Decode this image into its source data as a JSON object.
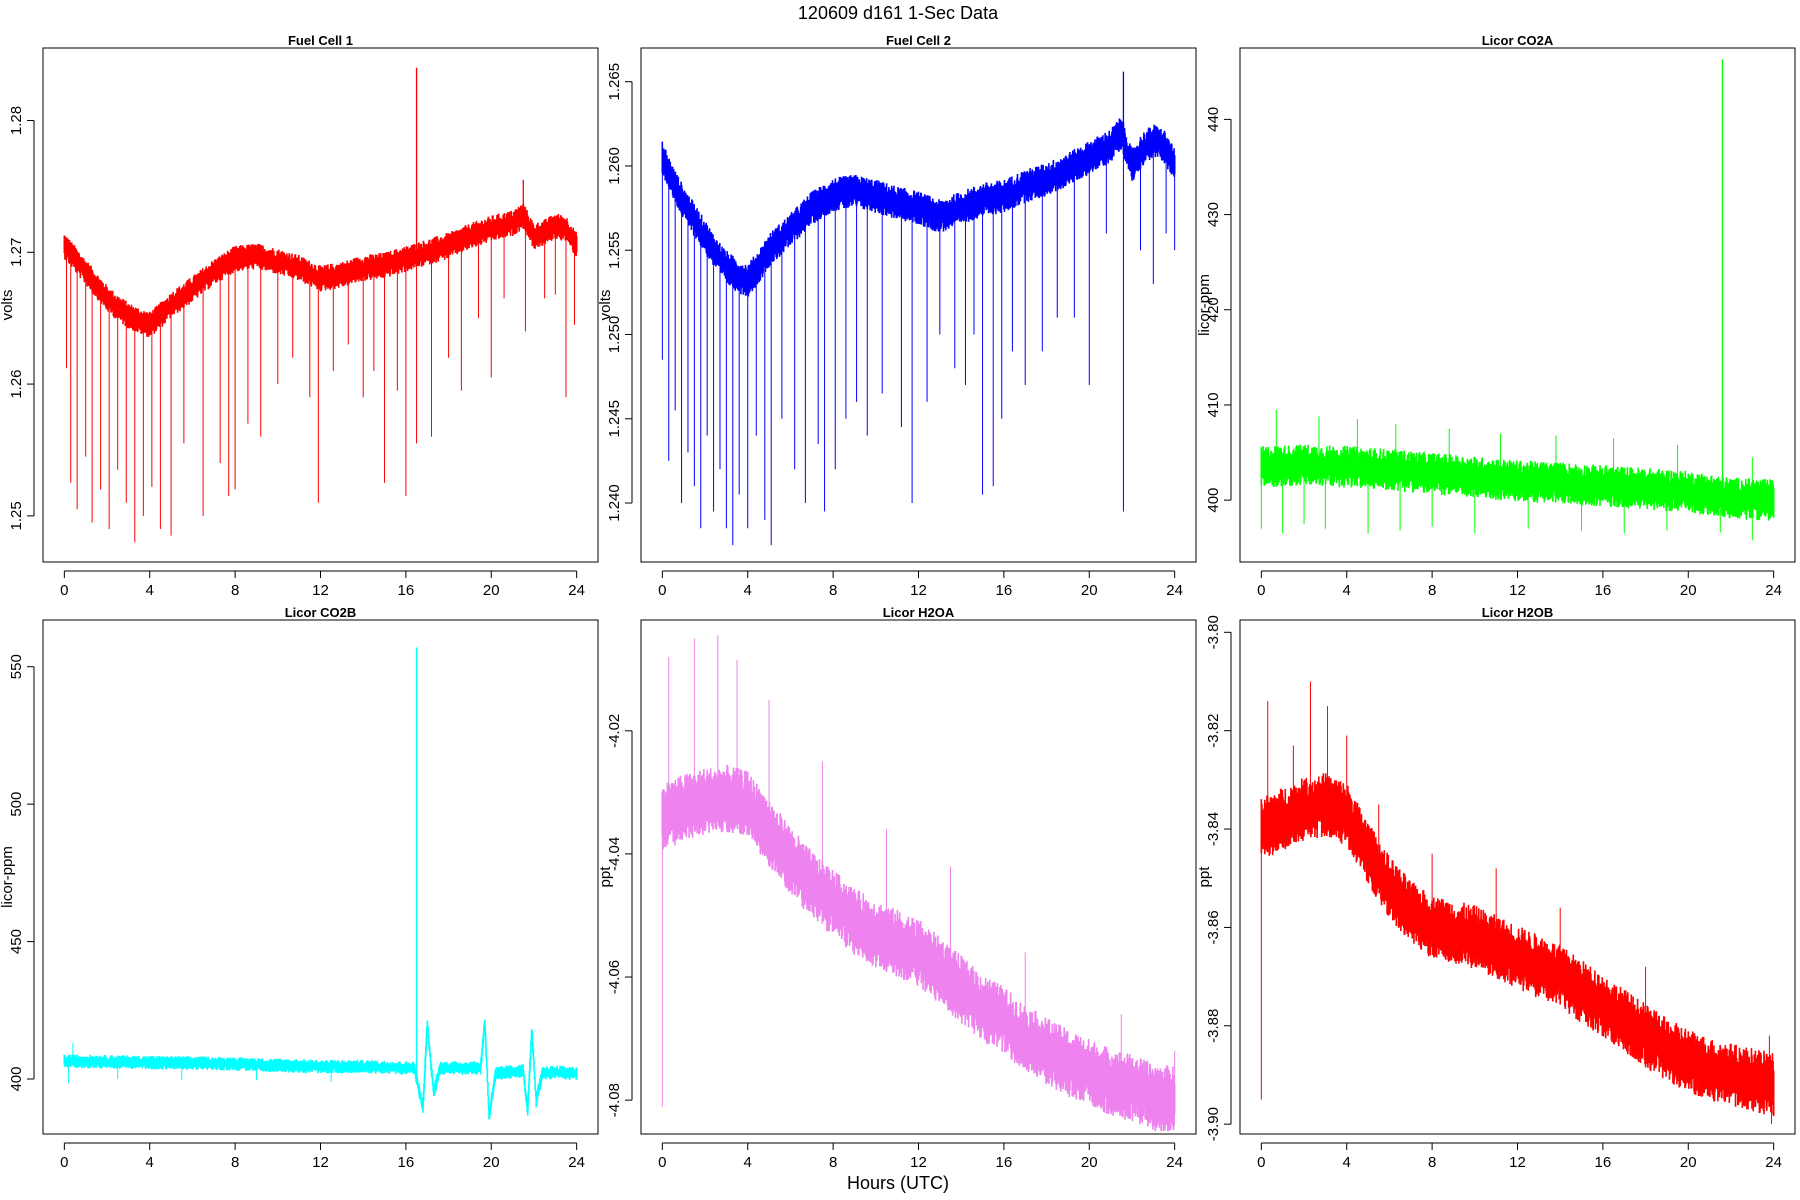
{
  "figure": {
    "title": "120609   d161   1-Sec Data",
    "xlabel": "Hours (UTC)"
  },
  "chart_data": [
    {
      "type": "line",
      "title": "Fuel Cell 1",
      "ylabel": "volts",
      "color": "#ff0000",
      "xlim": [
        -1,
        25
      ],
      "ylim": [
        1.2465,
        1.2855
      ],
      "xticks": [
        0,
        4,
        8,
        12,
        16,
        20,
        24
      ],
      "yticks": [
        1.25,
        1.26,
        1.27,
        1.28
      ],
      "ytick_labels": [
        "1.25",
        "1.26",
        "1.27",
        "1.28"
      ],
      "x": [
        0,
        0.5,
        1,
        1.5,
        2,
        2.5,
        3,
        3.5,
        4,
        4.5,
        5,
        6,
        7,
        8,
        9,
        10,
        11,
        12,
        13,
        14,
        15,
        16,
        17,
        18,
        19,
        20,
        21,
        21.5,
        22,
        22.5,
        23,
        23.5,
        24
      ],
      "y": [
        1.2705,
        1.2695,
        1.2685,
        1.2675,
        1.2665,
        1.2658,
        1.2652,
        1.2648,
        1.2645,
        1.2652,
        1.266,
        1.2672,
        1.2685,
        1.2695,
        1.2697,
        1.2693,
        1.2688,
        1.268,
        1.2683,
        1.2688,
        1.269,
        1.2695,
        1.27,
        1.2705,
        1.2712,
        1.2718,
        1.2722,
        1.2728,
        1.2712,
        1.2715,
        1.272,
        1.2718,
        1.2705
      ],
      "band": 0.001,
      "spikes": [
        [
          0.1,
          1.2612
        ],
        [
          0.3,
          1.2525
        ],
        [
          0.6,
          1.2505
        ],
        [
          1.0,
          1.2545
        ],
        [
          1.3,
          1.2495
        ],
        [
          1.7,
          1.252
        ],
        [
          2.1,
          1.249
        ],
        [
          2.5,
          1.2535
        ],
        [
          2.9,
          1.251
        ],
        [
          3.3,
          1.248
        ],
        [
          3.7,
          1.25
        ],
        [
          4.1,
          1.2522
        ],
        [
          4.5,
          1.249
        ],
        [
          5.0,
          1.2485
        ],
        [
          5.6,
          1.2555
        ],
        [
          6.5,
          1.25
        ],
        [
          7.3,
          1.254
        ],
        [
          7.7,
          1.2515
        ],
        [
          8.0,
          1.252
        ],
        [
          8.6,
          1.257
        ],
        [
          9.2,
          1.256
        ],
        [
          10.0,
          1.26
        ],
        [
          10.7,
          1.262
        ],
        [
          11.5,
          1.259
        ],
        [
          11.9,
          1.251
        ],
        [
          12.6,
          1.261
        ],
        [
          13.3,
          1.263
        ],
        [
          14.0,
          1.259
        ],
        [
          14.5,
          1.261
        ],
        [
          15.0,
          1.2525
        ],
        [
          15.6,
          1.2595
        ],
        [
          16.0,
          1.2515
        ],
        [
          16.5,
          1.2555
        ],
        [
          17.2,
          1.256
        ],
        [
          18.0,
          1.262
        ],
        [
          18.6,
          1.2595
        ],
        [
          19.4,
          1.265
        ],
        [
          20.0,
          1.2605
        ],
        [
          20.6,
          1.2665
        ],
        [
          21.6,
          1.264
        ],
        [
          22.5,
          1.2665
        ],
        [
          23.0,
          1.2668
        ],
        [
          23.5,
          1.259
        ],
        [
          23.9,
          1.2645
        ]
      ],
      "peaks": [
        [
          16.5,
          1.284
        ],
        [
          21.5,
          1.2755
        ]
      ]
    },
    {
      "type": "line",
      "title": "Fuel Cell 2",
      "ylabel": "volts",
      "color": "#0000ff",
      "xlim": [
        -1,
        25
      ],
      "ylim": [
        1.2365,
        1.267
      ],
      "xticks": [
        0,
        4,
        8,
        12,
        16,
        20,
        24
      ],
      "yticks": [
        1.24,
        1.245,
        1.25,
        1.255,
        1.26,
        1.265
      ],
      "ytick_labels": [
        "1.240",
        "1.245",
        "1.250",
        "1.255",
        "1.260",
        "1.265"
      ],
      "x": [
        0,
        0.5,
        1,
        1.5,
        2,
        2.5,
        3,
        3.5,
        4,
        4.5,
        5,
        6,
        7,
        8,
        9,
        10,
        11,
        12,
        13,
        14,
        15,
        16,
        17,
        18,
        19,
        20,
        21,
        21.5,
        22,
        22.5,
        23,
        23.5,
        24
      ],
      "y": [
        1.2605,
        1.259,
        1.2578,
        1.2568,
        1.2558,
        1.2548,
        1.254,
        1.2535,
        1.2532,
        1.254,
        1.255,
        1.2562,
        1.2575,
        1.2583,
        1.2585,
        1.2582,
        1.2578,
        1.2575,
        1.257,
        1.2575,
        1.258,
        1.2582,
        1.2588,
        1.2592,
        1.2598,
        1.2605,
        1.2612,
        1.262,
        1.26,
        1.261,
        1.2615,
        1.2612,
        1.26
      ],
      "band": 0.001,
      "spikes": [
        [
          0.0,
          1.2485
        ],
        [
          0.3,
          1.2425
        ],
        [
          0.6,
          1.2455
        ],
        [
          0.9,
          1.24
        ],
        [
          1.2,
          1.243
        ],
        [
          1.5,
          1.241
        ],
        [
          1.8,
          1.2385
        ],
        [
          2.1,
          1.244
        ],
        [
          2.4,
          1.2395
        ],
        [
          2.7,
          1.242
        ],
        [
          3.0,
          1.2385
        ],
        [
          3.3,
          1.2375
        ],
        [
          3.6,
          1.2405
        ],
        [
          4.0,
          1.2385
        ],
        [
          4.4,
          1.244
        ],
        [
          4.8,
          1.239
        ],
        [
          5.1,
          1.2375
        ],
        [
          5.6,
          1.245
        ],
        [
          6.2,
          1.242
        ],
        [
          6.7,
          1.24
        ],
        [
          7.3,
          1.2435
        ],
        [
          7.6,
          1.2395
        ],
        [
          8.1,
          1.242
        ],
        [
          8.6,
          1.245
        ],
        [
          9.1,
          1.246
        ],
        [
          9.6,
          1.244
        ],
        [
          10.3,
          1.2465
        ],
        [
          11.2,
          1.2445
        ],
        [
          11.7,
          1.24
        ],
        [
          12.4,
          1.246
        ],
        [
          13.0,
          1.25
        ],
        [
          13.7,
          1.248
        ],
        [
          14.2,
          1.247
        ],
        [
          14.6,
          1.25
        ],
        [
          15.0,
          1.2405
        ],
        [
          15.5,
          1.241
        ],
        [
          15.9,
          1.245
        ],
        [
          16.4,
          1.249
        ],
        [
          17.0,
          1.247
        ],
        [
          17.8,
          1.249
        ],
        [
          18.5,
          1.251
        ],
        [
          19.3,
          1.251
        ],
        [
          20.0,
          1.247
        ],
        [
          20.8,
          1.256
        ],
        [
          21.6,
          1.2395
        ],
        [
          22.4,
          1.255
        ],
        [
          23.0,
          1.253
        ],
        [
          23.6,
          1.256
        ],
        [
          24.0,
          1.255
        ]
      ],
      "peaks": [
        [
          21.6,
          1.2656
        ]
      ]
    },
    {
      "type": "line",
      "title": "Licor CO2A",
      "ylabel": "licor-ppm",
      "color": "#00ff00",
      "xlim": [
        -1,
        25
      ],
      "ylim": [
        393.5,
        447.5
      ],
      "xticks": [
        0,
        4,
        8,
        12,
        16,
        20,
        24
      ],
      "yticks": [
        400,
        410,
        420,
        430,
        440
      ],
      "ytick_labels": [
        "400",
        "410",
        "420",
        "430",
        "440"
      ],
      "x": [
        0,
        2,
        4,
        6,
        8,
        10,
        12,
        14,
        16,
        18,
        20,
        22,
        24
      ],
      "y": [
        403.5,
        403.7,
        403.5,
        403.2,
        402.8,
        402.4,
        402.0,
        401.8,
        401.5,
        401.2,
        400.9,
        400.2,
        400.0
      ],
      "band": 2.2,
      "spikes": [
        [
          0.0,
          397.0
        ],
        [
          1.0,
          396.5
        ],
        [
          2.0,
          397.5
        ],
        [
          3.0,
          397.0
        ],
        [
          5.0,
          396.5
        ],
        [
          6.5,
          396.8
        ],
        [
          8.0,
          397.2
        ],
        [
          10.0,
          396.5
        ],
        [
          12.5,
          397.0
        ],
        [
          15.0,
          396.8
        ],
        [
          17.0,
          396.5
        ],
        [
          19.0,
          396.8
        ],
        [
          21.5,
          396.6
        ],
        [
          23.0,
          395.8
        ],
        [
          0.7,
          409.5
        ],
        [
          2.7,
          408.8
        ],
        [
          4.5,
          408.5
        ],
        [
          6.3,
          408.0
        ],
        [
          8.8,
          407.5
        ],
        [
          11.2,
          407.0
        ],
        [
          13.8,
          406.8
        ],
        [
          16.5,
          406.5
        ],
        [
          19.5,
          405.8
        ],
        [
          23.0,
          404.5
        ]
      ],
      "peaks": [
        [
          21.6,
          446.3
        ]
      ]
    },
    {
      "type": "line",
      "title": "Licor CO2B",
      "ylabel": "licor-ppm",
      "color": "#00ffff",
      "xlim": [
        -1,
        25
      ],
      "ylim": [
        380.0,
        567.0
      ],
      "xticks": [
        0,
        4,
        8,
        12,
        16,
        20,
        24
      ],
      "yticks": [
        400,
        450,
        500,
        550
      ],
      "ytick_labels": [
        "400",
        "450",
        "500",
        "550"
      ],
      "x": [
        0,
        2,
        4,
        6,
        8,
        10,
        12,
        14,
        16,
        16.4,
        16.8,
        17.0,
        17.3,
        17.6,
        18,
        19.5,
        19.7,
        19.9,
        20.2,
        21.5,
        21.7,
        21.9,
        22.1,
        22.4,
        23,
        24
      ],
      "y": [
        406.5,
        406.3,
        406.0,
        405.8,
        405.5,
        405.0,
        404.5,
        404.5,
        404.0,
        404.0,
        389.0,
        420.0,
        395.0,
        404.0,
        404.0,
        404.0,
        421.0,
        386.0,
        402.0,
        403.0,
        388.0,
        418.0,
        392.0,
        402.0,
        402.5,
        402.0
      ],
      "band": 2.5,
      "spikes": [
        [
          0.2,
          398.5
        ],
        [
          0.4,
          413.0
        ],
        [
          2.5,
          400.0
        ],
        [
          5.5,
          399.5
        ],
        [
          9.0,
          399.5
        ],
        [
          12.5,
          399.0
        ]
      ],
      "peaks": [
        [
          16.5,
          557.0
        ]
      ]
    },
    {
      "type": "line",
      "title": "Licor H2OA",
      "ylabel": "ppt",
      "color": "#ee82ee",
      "xlim": [
        -1,
        25
      ],
      "ylim": [
        -4.0855,
        -4.002
      ],
      "xticks": [
        0,
        4,
        8,
        12,
        16,
        20,
        24
      ],
      "yticks": [
        -4.08,
        -4.06,
        -4.04,
        -4.02
      ],
      "ytick_labels": [
        "-4.08",
        "-4.06",
        "-4.04",
        "-4.02"
      ],
      "x": [
        0,
        1,
        2,
        3,
        4,
        5,
        6,
        7,
        8,
        9,
        10,
        11,
        12,
        13,
        14,
        15,
        16,
        17,
        18,
        19,
        20,
        21,
        22,
        23,
        24
      ],
      "y": [
        -4.034,
        -4.0325,
        -4.0315,
        -4.031,
        -4.032,
        -4.0365,
        -4.041,
        -4.045,
        -4.048,
        -4.051,
        -4.053,
        -4.0545,
        -4.056,
        -4.059,
        -4.062,
        -4.065,
        -4.067,
        -4.07,
        -4.072,
        -4.074,
        -4.0755,
        -4.077,
        -4.078,
        -4.0795,
        -4.08
      ],
      "band": 0.0055,
      "spikes": [
        [
          0.0,
          -4.081
        ],
        [
          0.3,
          -4.008
        ],
        [
          1.5,
          -4.005
        ],
        [
          2.6,
          -4.0045
        ],
        [
          3.5,
          -4.0085
        ],
        [
          5.0,
          -4.015
        ],
        [
          7.5,
          -4.025
        ],
        [
          10.5,
          -4.036
        ],
        [
          13.5,
          -4.042
        ],
        [
          17.0,
          -4.056
        ],
        [
          21.5,
          -4.066
        ],
        [
          21.6,
          -4.081
        ],
        [
          24.0,
          -4.072
        ]
      ],
      "peaks": []
    },
    {
      "type": "line",
      "title": "Licor H2OB",
      "ylabel": "ppt",
      "color": "#ff0000",
      "xlim": [
        -1,
        25
      ],
      "ylim": [
        -3.902,
        -3.7975
      ],
      "xticks": [
        0,
        4,
        8,
        12,
        16,
        20,
        24
      ],
      "yticks": [
        -3.9,
        -3.88,
        -3.86,
        -3.84,
        -3.82,
        -3.8
      ],
      "ytick_labels": [
        "-3.90",
        "-3.88",
        "-3.86",
        "-3.84",
        "-3.82",
        "-3.80"
      ],
      "x": [
        0,
        1,
        2,
        3,
        4,
        5,
        6,
        7,
        8,
        9,
        10,
        11,
        12,
        13,
        14,
        15,
        16,
        17,
        18,
        19,
        20,
        21,
        22,
        23,
        24
      ],
      "y": [
        -3.84,
        -3.838,
        -3.836,
        -3.835,
        -3.837,
        -3.845,
        -3.852,
        -3.857,
        -3.86,
        -3.861,
        -3.862,
        -3.864,
        -3.866,
        -3.868,
        -3.87,
        -3.873,
        -3.876,
        -3.879,
        -3.882,
        -3.885,
        -3.887,
        -3.889,
        -3.89,
        -3.891,
        -3.892
      ],
      "band": 0.0065,
      "spikes": [
        [
          0.0,
          -3.895
        ],
        [
          0.3,
          -3.814
        ],
        [
          1.5,
          -3.823
        ],
        [
          2.3,
          -3.81
        ],
        [
          3.1,
          -3.815
        ],
        [
          4.0,
          -3.821
        ],
        [
          5.5,
          -3.835
        ],
        [
          8.0,
          -3.845
        ],
        [
          11.0,
          -3.848
        ],
        [
          14.0,
          -3.856
        ],
        [
          18.0,
          -3.868
        ],
        [
          21.5,
          -3.888
        ],
        [
          23.8,
          -3.882
        ],
        [
          23.9,
          -3.9
        ]
      ],
      "peaks": []
    }
  ]
}
